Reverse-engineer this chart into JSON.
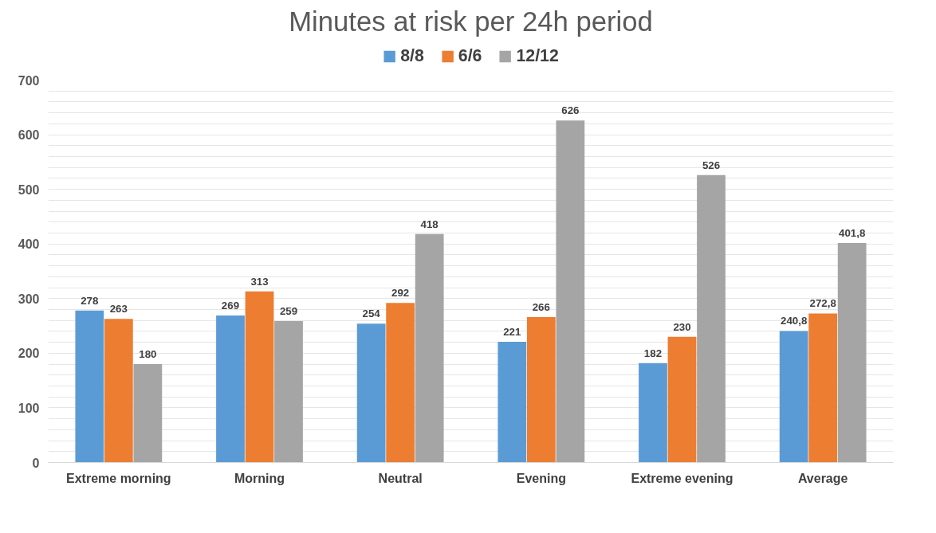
{
  "chart_data": {
    "type": "bar",
    "title": "Minutes at risk per 24h period",
    "categories": [
      "Extreme morning",
      "Morning",
      "Neutral",
      "Evening",
      "Extreme evening",
      "Average"
    ],
    "series": [
      {
        "name": "8/8",
        "color": "#5b9bd5",
        "values": [
          278,
          269,
          254,
          221,
          182,
          240.8
        ],
        "value_labels": [
          "278",
          "269",
          "254",
          "221",
          "182",
          "240,8"
        ]
      },
      {
        "name": "6/6",
        "color": "#ed7d31",
        "values": [
          263,
          313,
          292,
          266,
          230,
          272.8
        ],
        "value_labels": [
          "263",
          "313",
          "292",
          "266",
          "230",
          "272,8"
        ]
      },
      {
        "name": "12/12",
        "color": "#a5a5a5",
        "values": [
          180,
          259,
          418,
          626,
          526,
          401.8
        ],
        "value_labels": [
          "180",
          "259",
          "418",
          "626",
          "526",
          "401,8"
        ]
      }
    ],
    "ylim": [
      0,
      700
    ],
    "yticks": [
      0,
      {
        "value": 20,
        "label": null
      },
      {
        "value": 40,
        "label": null
      },
      {
        "value": 60,
        "label": null
      },
      {
        "value": 80,
        "label": null
      },
      100,
      {
        "value": 120,
        "label": null
      },
      {
        "value": 140,
        "label": null
      },
      {
        "value": 160,
        "label": null
      },
      {
        "value": 180,
        "label": null
      },
      200,
      {
        "value": 220,
        "label": null
      },
      {
        "value": 240,
        "label": null
      },
      {
        "value": 260,
        "label": null
      },
      {
        "value": 280,
        "label": null
      },
      300,
      {
        "value": 320,
        "label": null
      },
      {
        "value": 340,
        "label": null
      },
      {
        "value": 360,
        "label": null
      },
      {
        "value": 380,
        "label": null
      },
      400,
      {
        "value": 420,
        "label": null
      },
      {
        "value": 440,
        "label": null
      },
      {
        "value": 460,
        "label": null
      },
      {
        "value": 480,
        "label": null
      },
      500,
      {
        "value": 520,
        "label": null
      },
      {
        "value": 540,
        "label": null
      },
      {
        "value": 560,
        "label": null
      },
      {
        "value": 580,
        "label": null
      },
      600,
      {
        "value": 620,
        "label": null
      },
      {
        "value": 640,
        "label": null
      },
      {
        "value": 660,
        "label": null
      },
      {
        "value": 680,
        "label": null
      },
      700
    ],
    "grid": "y",
    "legend": "top"
  }
}
